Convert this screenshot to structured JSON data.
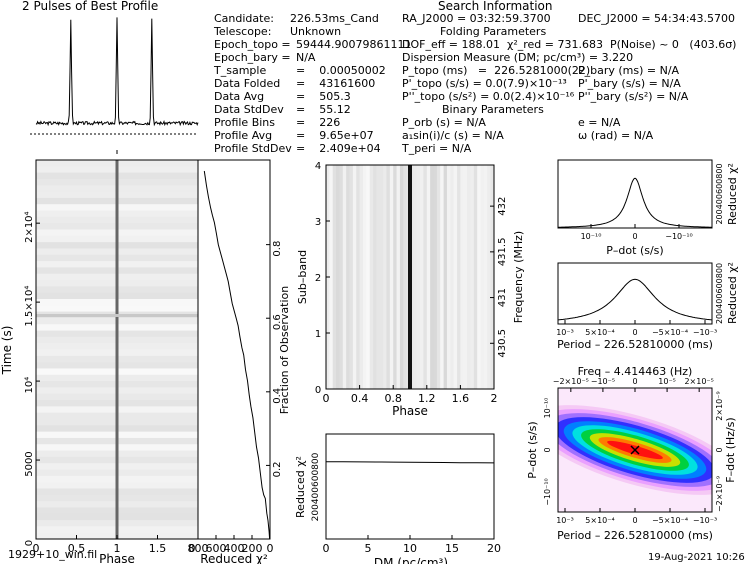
{
  "header": {
    "profile_title": "2 Pulses of Best Profile",
    "search_title": "Search Information",
    "folding_title": "Folding Parameters",
    "binary_title": "Binary Parameters"
  },
  "candidate_info": [
    {
      "label": "Candidate:",
      "value": "226.53ms_Cand"
    },
    {
      "label": "Telescope:",
      "value": "Unknown"
    },
    {
      "label": "Epoch_topo =",
      "value": "59444.90079861111"
    },
    {
      "label": "Epoch_bary =",
      "value": "N/A"
    },
    {
      "label": "T_sample",
      "value": "0.00050002"
    },
    {
      "label": "Data Folded",
      "value": "43161600"
    },
    {
      "label": "Data Avg",
      "value": "505.3"
    },
    {
      "label": "Data StdDev",
      "value": "55.12"
    },
    {
      "label": "Profile Bins",
      "value": "226"
    },
    {
      "label": "Profile Avg",
      "value": "9.65e+07"
    },
    {
      "label": "Profile StdDev",
      "value": "2.409e+04"
    }
  ],
  "search_info": {
    "ra": "RA_J2000 = 03:32:59.3700",
    "dec": "DEC_J2000 = 54:34:43.5700",
    "dof_line": "DOF_eff = 188.01  χ²_red = 731.683  P(Noise) ~ 0   (403.6σ)",
    "dm_line": "Dispersion Measure (DM; pc/cm³) = 3.220",
    "p_topo": "P_topo (ms)   =  226.5281000(22)",
    "p_bary": "P_bary (ms) = N/A",
    "pd_topo": "P'_topo (s/s) = 0.0(7.9)×10⁻¹³",
    "pd_bary": "P'_bary (s/s) = N/A",
    "pdd_topo": "P''_topo (s/s²) = 0.0(2.4)×10⁻¹⁶",
    "pdd_bary": "P''_bary (s/s²) = N/A",
    "p_orb": "P_orb (s) = N/A",
    "ecc": "e = N/A",
    "a1": "a₁sin(i)/c (s) = N/A",
    "omega": "ω (rad) = N/A",
    "t_peri": "T_peri = N/A"
  },
  "footer": {
    "filename": "1929+10_win.fil",
    "date": "19-Aug-2021 10:26"
  },
  "panel_labels": {
    "time_ylabel": "Time (s)",
    "phase_xlabel": "Phase",
    "redchi_xlabel": "Reduced χ²",
    "fraction_ylabel": "Fraction of Observation",
    "subband_ylabel": "Sub–band",
    "freq_ylabel": "Frequency (MHz)",
    "phase2_xlabel": "Phase",
    "dm_ylabel": "Reduced χ²",
    "dm_xlabel": "DM (pc/cm³)",
    "pdot_xlabel": "P–dot (s/s)",
    "pdot_ylabel": "Reduced χ²",
    "period_xlabel": "Period – 226.52810000 (ms)",
    "period_ylabel": "Reduced χ²",
    "pp_top_label": "Freq – 4.414463 (Hz)",
    "pp_left_label": "P–dot (s/s)",
    "pp_right_label": "F–dot (Hz/s)",
    "pp_bottom_label": "Period – 226.52810000 (ms)"
  },
  "chart_data": [
    {
      "type": "line",
      "name": "profile",
      "title": "2 Pulses of Best Profile",
      "x_range": [
        0,
        2
      ],
      "peaks_at_phase": [
        0.43,
        1.0,
        1.43
      ]
    },
    {
      "type": "heatmap",
      "name": "time-phase",
      "xlabel": "Phase",
      "ylabel": "Time (s)",
      "xlim": [
        0,
        2
      ],
      "ylim": [
        0,
        24000
      ],
      "x_ticks": [
        "0",
        "0.5",
        "1",
        "1.5"
      ],
      "y_ticks": [
        "5000",
        "10⁴",
        "1.5×10⁴",
        "2×10⁴"
      ],
      "y_tick_values": [
        5000,
        10000,
        15000,
        20000
      ],
      "pulse_phase": 1.0
    },
    {
      "type": "line",
      "name": "reduced-chi2-vs-time",
      "xlabel": "Reduced χ²",
      "ylabel": "Fraction of Observation",
      "x_ticks": [
        "800",
        "600",
        "400",
        "200",
        "0"
      ],
      "y_ticks": [
        "0.2",
        "0.4",
        "0.6",
        "0.8"
      ],
      "y_tick_values": [
        0.2,
        0.4,
        0.6,
        0.8
      ],
      "x_range": [
        800,
        0
      ],
      "y_range": [
        0,
        1.03
      ],
      "x": [
        4,
        10,
        22,
        36,
        52,
        70,
        88,
        108,
        128,
        150,
        170,
        190,
        212,
        230,
        250,
        272,
        292,
        312,
        334,
        354,
        376,
        398,
        420,
        442,
        464,
        486,
        508,
        530,
        552,
        574,
        596,
        618,
        640,
        660,
        684,
        706,
        730
      ],
      "y": [
        0,
        0.02,
        0.05,
        0.07,
        0.11,
        0.12,
        0.14,
        0.18,
        0.22,
        0.25,
        0.29,
        0.33,
        0.36,
        0.39,
        0.43,
        0.46,
        0.5,
        0.52,
        0.55,
        0.58,
        0.6,
        0.62,
        0.64,
        0.67,
        0.7,
        0.72,
        0.74,
        0.76,
        0.78,
        0.8,
        0.83,
        0.86,
        0.88,
        0.9,
        0.93,
        0.96,
        1.0
      ]
    },
    {
      "type": "heatmap",
      "name": "subband-phase",
      "xlabel": "Phase",
      "ylabel": "Sub–band",
      "y2label": "Frequency (MHz)",
      "x_ticks": [
        "0",
        "0.4",
        "0.8",
        "1.2",
        "1.6",
        "2"
      ],
      "x_tick_values": [
        0,
        0.4,
        0.8,
        1.2,
        1.6,
        2
      ],
      "y_ticks": [
        "0",
        "1",
        "2",
        "3",
        "4"
      ],
      "y_tick_values": [
        0,
        1,
        2,
        3,
        4
      ],
      "freq_ticks": [
        "430.5",
        "431",
        "431.5",
        "432"
      ],
      "freq_tick_values": [
        430.5,
        431,
        431.5,
        432
      ],
      "freq_range": [
        430.0,
        432.45
      ],
      "xlim": [
        0,
        2
      ],
      "ylim": [
        0,
        4
      ],
      "pulse_phase": 1.0
    },
    {
      "type": "line",
      "name": "dm-chi2",
      "xlabel": "DM (pc/cm³)",
      "ylabel": "Reduced χ²",
      "x_ticks": [
        "0",
        "5",
        "10",
        "15",
        "20"
      ],
      "x_tick_values": [
        0,
        5,
        10,
        15,
        20
      ],
      "xlim": [
        0,
        20
      ],
      "ylim": [
        0,
        1000
      ],
      "y_ticks": [
        "200",
        "400",
        "600",
        "800"
      ],
      "x": [
        0,
        2,
        4,
        6,
        8,
        10,
        12,
        14,
        16,
        18,
        20
      ],
      "y": [
        735,
        735,
        734,
        733,
        732,
        731,
        730,
        729,
        727,
        726,
        725
      ]
    },
    {
      "type": "line",
      "name": "pdot-chi2",
      "xlabel": "P–dot (s/s)",
      "ylabel": "Reduced χ²",
      "x_ticks": [
        "10⁻¹⁰",
        "0",
        "−10⁻¹⁰"
      ],
      "y_ticks": [
        "200",
        "400",
        "600",
        "800"
      ],
      "xlim": [
        -1.75,
        1.75
      ],
      "ylim": [
        0,
        1000
      ],
      "peak_x": 0,
      "peak_y": 732
    },
    {
      "type": "line",
      "name": "period-chi2",
      "xlabel": "Period – 226.52810000 (ms)",
      "ylabel": "Reduced χ²",
      "x_ticks": [
        "10⁻³",
        "5×10⁻⁴",
        "0",
        "−5×10⁻⁴",
        "−10⁻³"
      ],
      "y_ticks": [
        "200",
        "400",
        "600",
        "800"
      ],
      "xlim": [
        -1.1,
        1.1
      ],
      "ylim": [
        0,
        1000
      ],
      "peak_x": 0,
      "peak_y": 732
    },
    {
      "type": "heatmap",
      "name": "p-pdot-plane",
      "top_ticks": [
        "−2×10⁻⁵",
        "−10⁻⁵",
        "0",
        "10⁻⁵",
        "2×10⁻⁵"
      ],
      "bottom_ticks": [
        "10⁻³",
        "5×10⁻⁴",
        "0",
        "−5×10⁻⁴",
        "−10⁻³"
      ],
      "left_ticks": [
        "10⁻¹⁰",
        "0",
        "−10⁻¹⁰"
      ],
      "right_ticks": [
        "2×10⁻⁹",
        "0",
        "−2×10⁻⁹"
      ],
      "best_fit": [
        0,
        0
      ],
      "colors": [
        "#0000ff",
        "#00ffff",
        "#00ff00",
        "#ffff00",
        "#ff0000"
      ]
    }
  ]
}
